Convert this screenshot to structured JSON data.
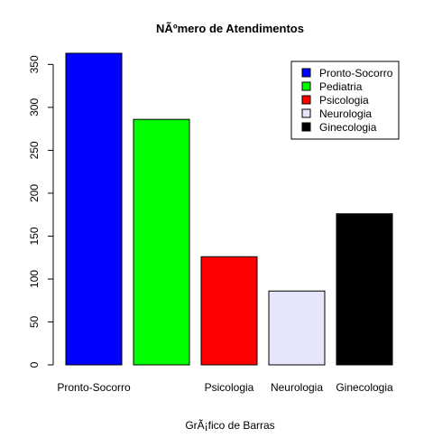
{
  "chart_data": {
    "type": "bar",
    "title": "NÃºmero de Atendimentos",
    "xlabel": "GrÃ¡fico de Barras",
    "ylabel": "",
    "categories": [
      "Pronto-Socorro",
      "Pediatria",
      "Psicologia",
      "Neurologia",
      "Ginecologia"
    ],
    "category_labels_shown": [
      "Pronto-Socorro",
      "",
      "Psicologia",
      "Neurologia",
      "Ginecologia"
    ],
    "values": [
      363,
      286,
      126,
      86,
      176
    ],
    "colors": [
      "#0000ff",
      "#00ff00",
      "#ff0000",
      "#e6e6fa",
      "#000000"
    ],
    "ylim": [
      0,
      363
    ],
    "yticks": [
      0,
      50,
      100,
      150,
      200,
      250,
      300,
      350
    ],
    "grid": false,
    "legend": {
      "placement": "top-right",
      "entries": [
        "Pronto-Socorro",
        "Pediatria",
        "Psicologia",
        "Neurologia",
        "Ginecologia"
      ]
    }
  }
}
